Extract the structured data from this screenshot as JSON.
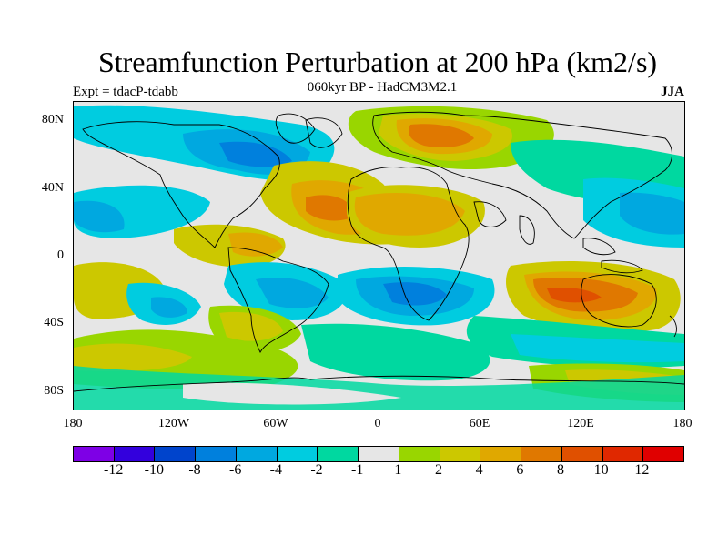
{
  "title": "Streamfunction Perturbation at 200 hPa (km2/s)",
  "subtitle": "060kyr BP - HadCM3M2.1",
  "experiment": "Expt = tdacP-tdabb",
  "season": "JJA",
  "y_axis": {
    "labels": [
      "80N",
      "40N",
      "0",
      "40S",
      "80S"
    ]
  },
  "x_axis": {
    "labels": [
      "180",
      "120W",
      "60W",
      "0",
      "60E",
      "120E",
      "180"
    ]
  },
  "colorbar": {
    "colors": [
      "#7e00e6",
      "#3300dd",
      "#0044cc",
      "#0080dd",
      "#00a8e0",
      "#00cce0",
      "#00d8a0",
      "#e6e6e6",
      "#99d600",
      "#ccc800",
      "#e0a800",
      "#e07800",
      "#e05000",
      "#e02800",
      "#e00000"
    ],
    "labels": [
      "-12",
      "-10",
      "-8",
      "-6",
      "-4",
      "-2",
      "-1",
      "1",
      "2",
      "4",
      "6",
      "8",
      "10",
      "12"
    ]
  }
}
